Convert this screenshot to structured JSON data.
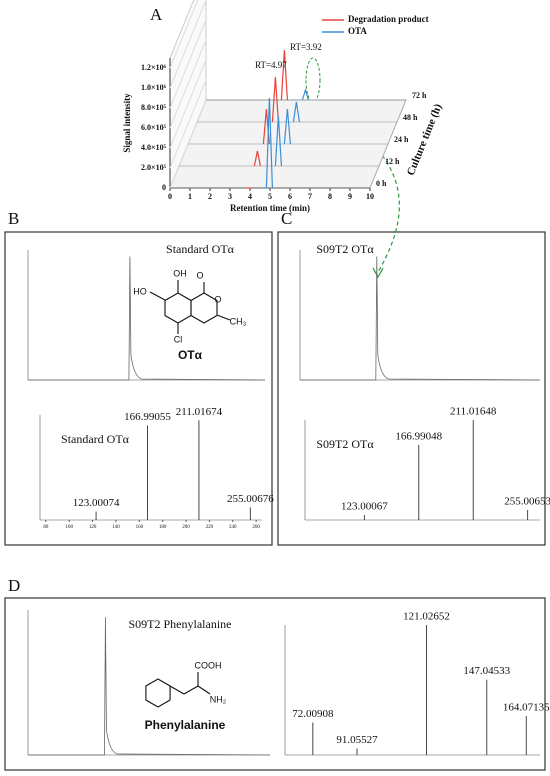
{
  "panel_a": {
    "label": "A",
    "legend": [
      {
        "name": "Degradation product",
        "color": "#e8433b"
      },
      {
        "name": "OTA",
        "color": "#3b8fd6"
      }
    ],
    "y_title": "Signal intensity",
    "x_title": "Retention time (min)",
    "z_title": "Culture time (h)",
    "ylim": [
      0,
      1300000
    ],
    "yticks": [
      {
        "value": 0,
        "label": "0"
      },
      {
        "value": 200000,
        "label": "2.0×10⁵"
      },
      {
        "value": 400000,
        "label": "4.0×10⁵"
      },
      {
        "value": 600000,
        "label": "6.0×10⁵"
      },
      {
        "value": 800000,
        "label": "8.0×10⁵"
      },
      {
        "value": 1000000,
        "label": "1.0×10⁶"
      },
      {
        "value": 1200000,
        "label": "1.2×10⁶"
      }
    ],
    "xlim": [
      0,
      10
    ],
    "xticks": [
      0,
      1,
      2,
      3,
      4,
      5,
      6,
      7,
      8,
      9,
      10
    ],
    "times": [
      "0 h",
      "12 h",
      "24 h",
      "48 h",
      "72 h"
    ],
    "rt": [
      {
        "value": 3.92,
        "label": "RT=3.92"
      },
      {
        "value": 4.97,
        "label": "RT=4.97"
      }
    ],
    "heights": [
      [
        0,
        150000,
        350000,
        450000,
        500000
      ],
      [
        900000,
        500000,
        350000,
        200000,
        100000
      ]
    ]
  },
  "panel_b": {
    "label": "B",
    "title": "Standard OTα",
    "chrom": {
      "xlim": [
        0,
        10
      ],
      "ylim": [
        0,
        100
      ],
      "rt": 4.3,
      "height": 95
    },
    "structure": {
      "name": "OTα",
      "atoms": [
        "HO",
        "OH",
        "O",
        "O",
        "Cl",
        "CH₃"
      ]
    },
    "spectrum": {
      "title": "Standard OTα",
      "xlim": [
        75,
        265
      ],
      "xticks": [
        80,
        100,
        120,
        140,
        160,
        180,
        200,
        220,
        240,
        260
      ],
      "ylim": [
        0,
        100
      ],
      "peaks": [
        {
          "mz": 123.00074,
          "height": 8
        },
        {
          "mz": 166.99055,
          "height": 90
        },
        {
          "mz": 211.01674,
          "height": 95
        },
        {
          "mz": 255.00676,
          "height": 12
        }
      ]
    }
  },
  "panel_c": {
    "label": "C",
    "title": "S09T2 OTα",
    "chrom": {
      "xlim": [
        0,
        10
      ],
      "ylim": [
        0,
        100
      ],
      "rt": 3.2,
      "height": 95
    },
    "spectrum": {
      "title": "S09T2 OTα",
      "xlim": [
        75,
        265
      ],
      "ylim": [
        0,
        100
      ],
      "peaks": [
        {
          "mz": 123.00067,
          "height": 5
        },
        {
          "mz": 166.99048,
          "height": 75
        },
        {
          "mz": 211.01648,
          "height": 100
        },
        {
          "mz": 255.00653,
          "height": 10
        }
      ]
    }
  },
  "panel_d": {
    "label": "D",
    "title": "S09T2 Phenylalanine",
    "chrom": {
      "xlim": [
        0,
        10
      ],
      "ylim": [
        0,
        100
      ],
      "rt": 3.2,
      "height": 95
    },
    "structure": {
      "name": "Phenylalanine",
      "atoms": [
        "COOH",
        "NH₂"
      ]
    },
    "spectrum": {
      "xlim": [
        60,
        170
      ],
      "ylim": [
        0,
        100
      ],
      "peaks": [
        {
          "mz": 72.00908,
          "height": 25
        },
        {
          "mz": 91.05527,
          "height": 5
        },
        {
          "mz": 121.02652,
          "height": 100
        },
        {
          "mz": 147.04533,
          "height": 58
        },
        {
          "mz": 164.07135,
          "height": 30
        }
      ]
    }
  }
}
